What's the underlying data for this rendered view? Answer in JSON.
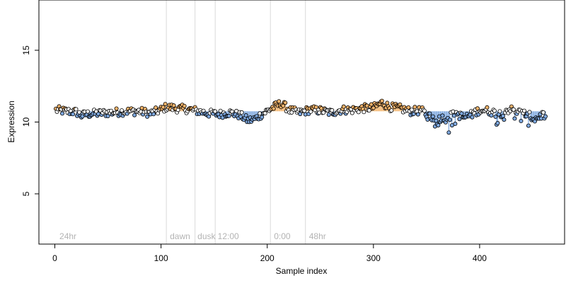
{
  "colors": {
    "background": "#ffffff",
    "axis": "#000000",
    "vline": "#d9d9d9",
    "annotation": "#b3b3b3",
    "above": "#f3b46b",
    "below": "#7ea8df",
    "neutral": "#ffffff",
    "point_edge": "#000000"
  },
  "chart_data": {
    "type": "scatter",
    "xlabel": "Sample index",
    "ylabel": "Expression",
    "xlim": [
      -15,
      480
    ],
    "ylim": [
      1.5,
      18.5
    ],
    "xticks": [
      0,
      100,
      200,
      300,
      400
    ],
    "yticks": [
      5,
      10,
      15
    ],
    "baseline": 10.75,
    "n_points": 462,
    "annotations": [
      {
        "x": 3,
        "text": "24hr"
      },
      {
        "x": 107,
        "text": "dawn"
      },
      {
        "x": 133,
        "text": "dusk"
      },
      {
        "x": 152,
        "text": "12:00"
      },
      {
        "x": 205,
        "text": "0:00"
      },
      {
        "x": 238,
        "text": "48hr"
      }
    ],
    "vertical_lines": [
      105,
      132,
      151,
      203,
      236
    ],
    "profile_knots": [
      [
        0,
        10.85
      ],
      [
        10,
        10.75
      ],
      [
        20,
        10.7
      ],
      [
        25,
        10.45
      ],
      [
        30,
        10.55
      ],
      [
        40,
        10.6
      ],
      [
        50,
        10.65
      ],
      [
        60,
        10.7
      ],
      [
        70,
        10.75
      ],
      [
        80,
        10.75
      ],
      [
        90,
        10.6
      ],
      [
        100,
        10.85
      ],
      [
        105,
        11.05
      ],
      [
        115,
        10.95
      ],
      [
        125,
        10.9
      ],
      [
        135,
        10.75
      ],
      [
        145,
        10.6
      ],
      [
        155,
        10.55
      ],
      [
        165,
        10.65
      ],
      [
        175,
        10.45
      ],
      [
        182,
        10.1
      ],
      [
        188,
        10.2
      ],
      [
        195,
        10.55
      ],
      [
        205,
        11.0
      ],
      [
        213,
        11.3
      ],
      [
        222,
        10.8
      ],
      [
        230,
        10.65
      ],
      [
        240,
        10.85
      ],
      [
        250,
        10.8
      ],
      [
        260,
        10.65
      ],
      [
        270,
        10.85
      ],
      [
        280,
        10.85
      ],
      [
        290,
        10.95
      ],
      [
        300,
        11.0
      ],
      [
        308,
        11.35
      ],
      [
        315,
        11.05
      ],
      [
        325,
        10.95
      ],
      [
        335,
        10.75
      ],
      [
        345,
        10.8
      ],
      [
        352,
        10.4
      ],
      [
        360,
        10.3
      ],
      [
        368,
        10.25
      ],
      [
        378,
        10.6
      ],
      [
        385,
        10.3
      ],
      [
        392,
        10.5
      ],
      [
        400,
        10.85
      ],
      [
        410,
        10.75
      ],
      [
        418,
        10.55
      ],
      [
        428,
        10.9
      ],
      [
        438,
        10.65
      ],
      [
        445,
        10.5
      ],
      [
        452,
        10.2
      ],
      [
        460,
        10.55
      ],
      [
        462,
        10.5
      ]
    ],
    "noise_amplitude": 0.28
  }
}
